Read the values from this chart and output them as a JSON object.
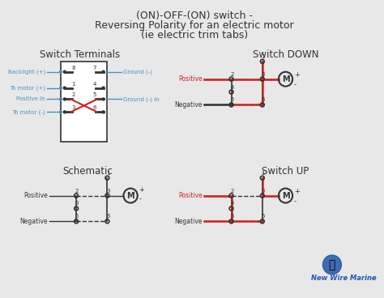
{
  "title_line1": "(ON)-OFF-(ON) switch -",
  "title_line2": "Reversing Polarity for an electric motor",
  "title_line3": "(ie electric trim tabs)",
  "bg_color": "#e8e8e8",
  "panel_color": "#ffffff",
  "dark_color": "#333333",
  "blue_color": "#4a90c4",
  "red_color": "#cc2222",
  "label_color": "#555555",
  "section_titles": [
    "Switch Terminals",
    "Switch DOWN",
    "Schematic",
    "Switch UP"
  ],
  "brand_text": "New Wire Marine"
}
